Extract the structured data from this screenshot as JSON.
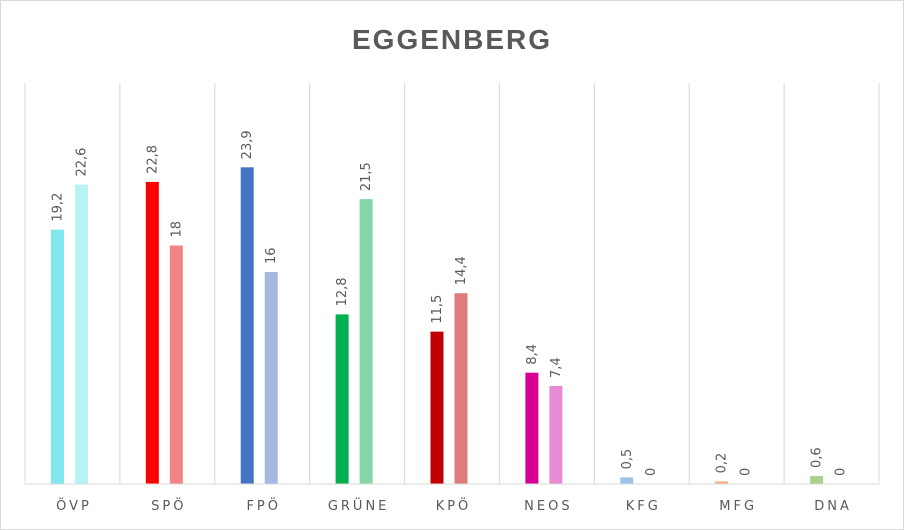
{
  "chart_data": {
    "type": "bar",
    "title": "EGGENBERG",
    "xlabel": "",
    "ylabel": "",
    "ylim": [
      0,
      25
    ],
    "grid": "vertical category separators",
    "legend": "none",
    "categories": [
      "ÖVP",
      "SPÖ",
      "FPÖ",
      "GRÜNE",
      "KPÖ",
      "NEOS",
      "KFG",
      "MFG",
      "DNA"
    ],
    "series": [
      {
        "values": [
          19.2,
          22.8,
          23.9,
          12.8,
          11.5,
          8.4,
          0.5,
          0.2,
          0.6
        ],
        "labels": [
          "19,2",
          "22,8",
          "23,9",
          "12,8",
          "11,5",
          "8,4",
          "0,5",
          "0,2",
          "0,6"
        ],
        "colors": [
          "#7FE8EC",
          "#FF0000",
          "#4472C4",
          "#00B050",
          "#C00000",
          "#D60093",
          "#9DC3E6",
          "#F4B183",
          "#A9D18E"
        ]
      },
      {
        "values": [
          22.6,
          18,
          16,
          21.5,
          14.4,
          7.4,
          0,
          0,
          0
        ],
        "labels": [
          "22,6",
          "18",
          "16",
          "21,5",
          "14,4",
          "7,4",
          "0",
          "0",
          "0"
        ],
        "colors": [
          "#B8F3F5",
          "#F48383",
          "#A4B8E0",
          "#85D6A8",
          "#E07B7B",
          "#E88AD4",
          "#BDD7EE",
          "#F8CBAD",
          "#C5E0B4"
        ]
      }
    ]
  }
}
